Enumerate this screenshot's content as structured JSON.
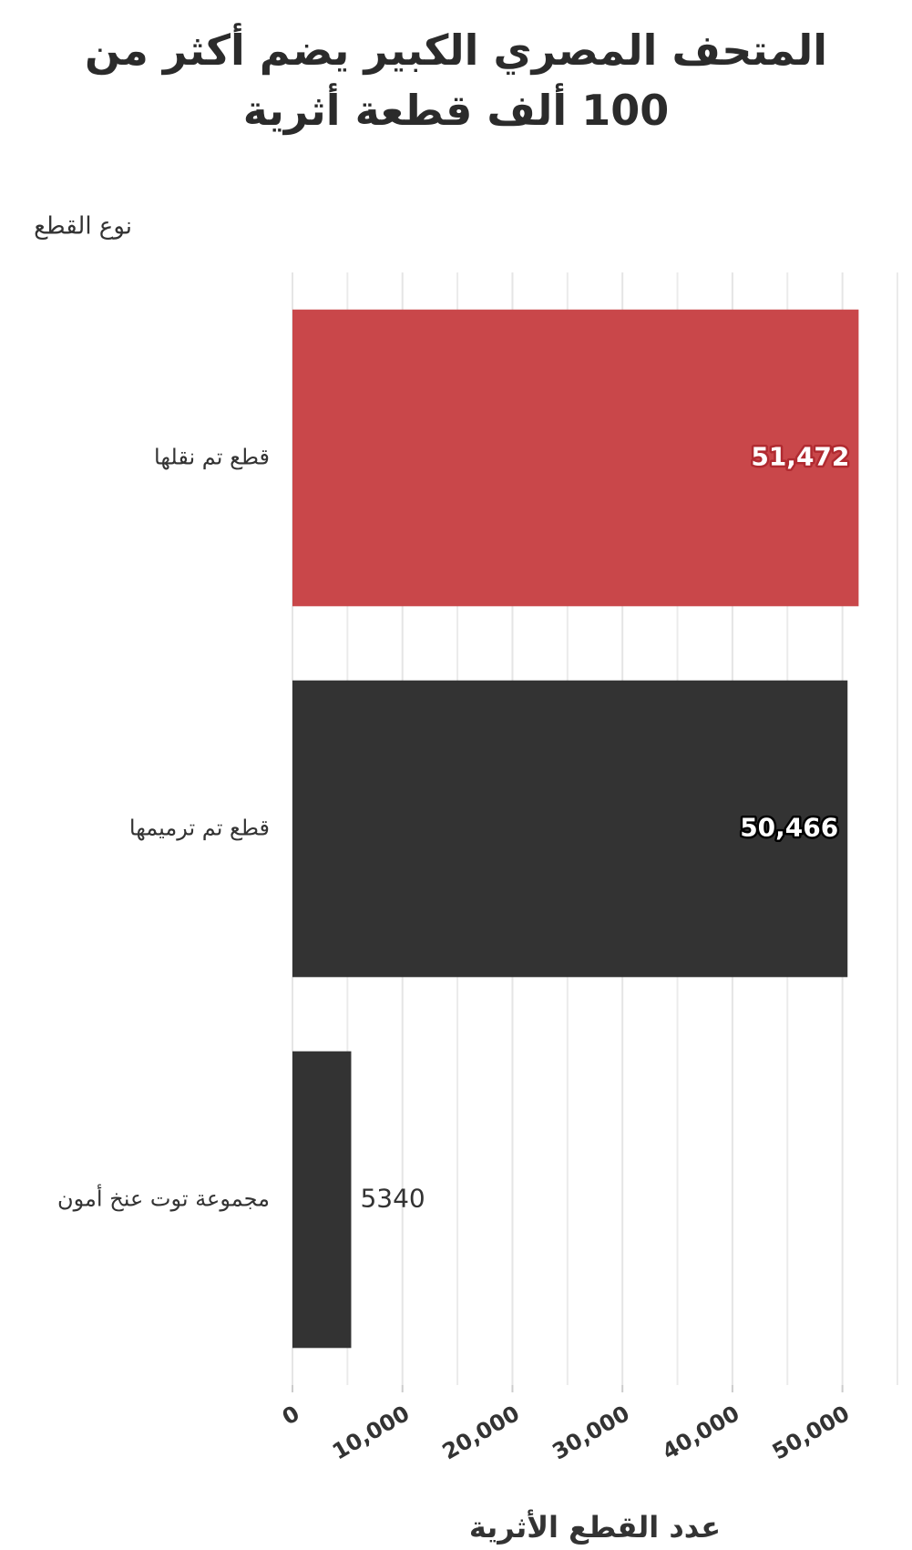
{
  "chart_data": {
    "type": "barh",
    "title": "المتحف المصري الكبير يضم أكثر من 100 ألف قطعة أثرية",
    "y_label": "نوع القطع",
    "x_label": "عدد القطع الأثرية",
    "categories": [
      "قطع تم نقلها",
      "قطع تم ترميمها",
      "مجموعة توت عنخ أمون"
    ],
    "values": [
      51472,
      50466,
      5340
    ],
    "value_labels": [
      "51,472",
      "50,466",
      "5340"
    ],
    "colors": [
      "#c9474a",
      "#333333",
      "#333333"
    ],
    "xlim": [
      0,
      55000
    ],
    "xticks": [
      0,
      {
        "value": 10000,
        "label": "10,000"
      },
      {
        "value": 20000,
        "label": "20,000"
      },
      {
        "value": 30000,
        "label": "30,000"
      },
      {
        "value": 40000,
        "label": "40,000"
      },
      {
        "value": 50000,
        "label": "50,000"
      }
    ],
    "grid": true
  }
}
